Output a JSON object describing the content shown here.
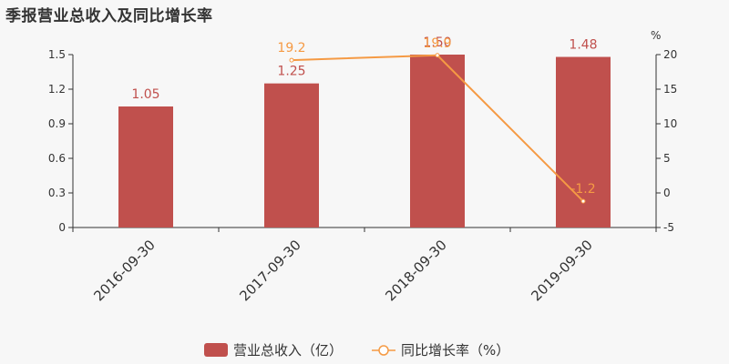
{
  "chart_data": {
    "type": "bar",
    "title": "季报营业总收入及同比增长率",
    "categories": [
      "2016-09-30",
      "2017-09-30",
      "2018-09-30",
      "2019-09-30"
    ],
    "series": [
      {
        "name": "营业总收入（亿）",
        "type": "bar",
        "axis": "left",
        "color": "#c0504d",
        "values": [
          1.05,
          1.25,
          1.5,
          1.48
        ],
        "labels": [
          "1.05",
          "1.25",
          "1.50",
          "1.48"
        ]
      },
      {
        "name": "同比增长率（%）",
        "type": "line",
        "axis": "right",
        "color": "#f59a44",
        "values": [
          null,
          19.2,
          19.9,
          -1.2
        ],
        "labels": [
          "",
          "19.2",
          "19.9",
          "-1.2"
        ]
      }
    ],
    "y_left": {
      "ylim": [
        0,
        1.5
      ],
      "ticks": [
        "0",
        "0.3",
        "0.6",
        "0.9",
        "1.2",
        "1.5"
      ]
    },
    "y_right": {
      "ylim": [
        -5,
        20
      ],
      "ticks": [
        "-5",
        "0",
        "5",
        "10",
        "15",
        "20"
      ],
      "unit": "%"
    },
    "grid": false,
    "legend": "bottom-center"
  }
}
